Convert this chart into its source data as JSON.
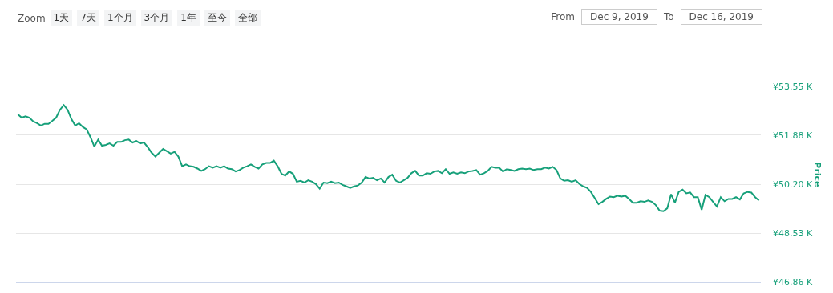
{
  "chart_data": {
    "type": "line",
    "ylabel": "Price",
    "annotations": [
      "Zoom",
      "1天",
      "7天",
      "1个月",
      "3个月",
      "1年",
      "至今",
      "全部",
      "From",
      "Dec 9, 2019",
      "To",
      "Dec 16, 2019"
    ],
    "categories": [
      null,
      null,
      null,
      null,
      null,
      null,
      null,
      null,
      null,
      null,
      null,
      null,
      null,
      null,
      null,
      null,
      null,
      null,
      null,
      null,
      null,
      null,
      null,
      null,
      null,
      null,
      null,
      null,
      null,
      null,
      null,
      null,
      null,
      null,
      null,
      null,
      null,
      null,
      null,
      null,
      null,
      null,
      null,
      null,
      null,
      null,
      null,
      null,
      null,
      null,
      null,
      null,
      null,
      null,
      null,
      null,
      null,
      null,
      null,
      null,
      null,
      null,
      null,
      null,
      null,
      null,
      null,
      null,
      null,
      null,
      null,
      null,
      null,
      null,
      null,
      null,
      null,
      null,
      null,
      null,
      null,
      null,
      null,
      null,
      null,
      null,
      null,
      null,
      null,
      null,
      null,
      null,
      null,
      null,
      null,
      null,
      null,
      null,
      null,
      null,
      null,
      null,
      null,
      null,
      null,
      null,
      null,
      null,
      null,
      null,
      null,
      null,
      null,
      null,
      null,
      null,
      null,
      null,
      null,
      null,
      null,
      null,
      null,
      null,
      null,
      null,
      null,
      null,
      null,
      null,
      null,
      null,
      null,
      null,
      null,
      null,
      null,
      null,
      null,
      null,
      null,
      null,
      null,
      null,
      null,
      null,
      null,
      null,
      null,
      null,
      null,
      null,
      null,
      null,
      null,
      null,
      null,
      null,
      null,
      null,
      null,
      null,
      null,
      null,
      null,
      null,
      null,
      null,
      null,
      null,
      null,
      null,
      null,
      null,
      null,
      null,
      null,
      null,
      null,
      null,
      null,
      null,
      null,
      null,
      null,
      null,
      null,
      null,
      null,
      null,
      null,
      null,
      null,
      null,
      null
    ],
    "series": [
      {
        "color": "#17a07a",
        "values": [
          52.59,
          52.48,
          52.53,
          52.48,
          52.35,
          52.29,
          52.21,
          52.27,
          52.27,
          52.37,
          52.48,
          52.75,
          52.91,
          52.75,
          52.43,
          52.21,
          52.29,
          52.16,
          52.08,
          51.81,
          51.49,
          51.73,
          51.52,
          51.55,
          51.6,
          51.52,
          51.65,
          51.65,
          51.71,
          51.73,
          51.63,
          51.68,
          51.6,
          51.63,
          51.47,
          51.28,
          51.15,
          51.28,
          51.41,
          51.33,
          51.25,
          51.31,
          51.15,
          50.82,
          50.88,
          50.82,
          50.8,
          50.74,
          50.66,
          50.72,
          50.82,
          50.77,
          50.82,
          50.77,
          50.82,
          50.74,
          50.72,
          50.64,
          50.69,
          50.77,
          50.82,
          50.88,
          50.8,
          50.74,
          50.88,
          50.93,
          50.93,
          51.01,
          50.82,
          50.56,
          50.5,
          50.64,
          50.56,
          50.29,
          50.32,
          50.26,
          50.34,
          50.29,
          50.21,
          50.05,
          50.26,
          50.24,
          50.29,
          50.24,
          50.26,
          50.18,
          50.13,
          50.08,
          50.13,
          50.16,
          50.26,
          50.45,
          50.4,
          50.42,
          50.34,
          50.4,
          50.26,
          50.45,
          50.53,
          50.32,
          50.26,
          50.34,
          50.42,
          50.58,
          50.66,
          50.5,
          50.5,
          50.58,
          50.56,
          50.64,
          50.66,
          50.58,
          50.72,
          50.56,
          50.61,
          50.56,
          50.61,
          50.58,
          50.64,
          50.66,
          50.69,
          50.53,
          50.58,
          50.66,
          50.8,
          50.77,
          50.77,
          50.64,
          50.72,
          50.69,
          50.66,
          50.72,
          50.74,
          50.72,
          50.74,
          50.69,
          50.72,
          50.72,
          50.77,
          50.74,
          50.8,
          50.69,
          50.4,
          50.32,
          50.34,
          50.29,
          50.34,
          50.21,
          50.13,
          50.08,
          49.94,
          49.73,
          49.52,
          49.6,
          49.7,
          49.78,
          49.76,
          49.81,
          49.78,
          49.81,
          49.7,
          49.57,
          49.57,
          49.62,
          49.6,
          49.65,
          49.6,
          49.49,
          49.3,
          49.28,
          49.38,
          49.86,
          49.57,
          49.94,
          50.02,
          49.89,
          49.92,
          49.76,
          49.76,
          49.33,
          49.84,
          49.76,
          49.6,
          49.44,
          49.76,
          49.62,
          49.7,
          49.7,
          49.76,
          49.68,
          49.89,
          49.94,
          49.92,
          49.76,
          49.65
        ]
      }
    ],
    "ylim": [
      46.86,
      53.55
    ],
    "yticks": [
      {
        "value": 46.86,
        "label": "¥46.86 K"
      },
      {
        "value": 48.53,
        "label": "¥48.53 K"
      },
      {
        "value": 50.2,
        "label": "¥50.20 K"
      },
      {
        "value": 51.88,
        "label": "¥51.88 K"
      },
      {
        "value": 53.55,
        "label": "¥53.55 K"
      }
    ],
    "grid": "y",
    "legend": false,
    "marker": "none",
    "line_style": "solid",
    "tick_labels": "y"
  }
}
